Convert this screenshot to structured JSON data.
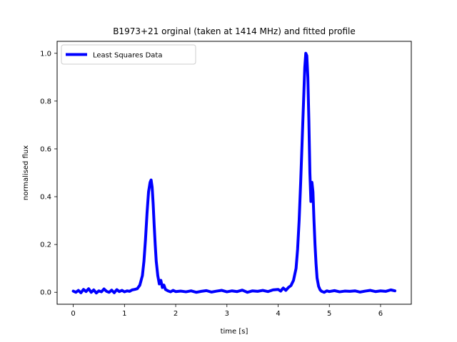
{
  "chart_data": {
    "type": "line",
    "title": "B1973+21 orginal (taken at 1414 MHz) and fitted profile",
    "xlabel": "time [s]",
    "ylabel": "normalised flux",
    "xlim": [
      -0.315,
      6.6
    ],
    "ylim": [
      -0.05,
      1.05
    ],
    "xticks": [
      0,
      1,
      2,
      3,
      4,
      5,
      6
    ],
    "xtick_labels": [
      "0",
      "1",
      "2",
      "3",
      "4",
      "5",
      "6"
    ],
    "yticks": [
      0.0,
      0.2,
      0.4,
      0.6,
      0.8,
      1.0
    ],
    "ytick_labels": [
      "0.0",
      "0.2",
      "0.4",
      "0.6",
      "0.8",
      "1.0"
    ],
    "grid": false,
    "legend": {
      "position": "upper-left"
    },
    "colors": {
      "series": "#0000ff",
      "axes": "#000000",
      "background": "#ffffff"
    },
    "series": [
      {
        "name": "Least Squares Data",
        "color": "#0000ff",
        "x": [
          0.0,
          0.05,
          0.1,
          0.15,
          0.2,
          0.25,
          0.3,
          0.35,
          0.4,
          0.45,
          0.5,
          0.55,
          0.6,
          0.65,
          0.7,
          0.75,
          0.8,
          0.85,
          0.9,
          0.95,
          1.0,
          1.05,
          1.1,
          1.15,
          1.2,
          1.25,
          1.3,
          1.35,
          1.38,
          1.41,
          1.44,
          1.47,
          1.5,
          1.52,
          1.54,
          1.56,
          1.58,
          1.6,
          1.62,
          1.65,
          1.68,
          1.71,
          1.74,
          1.77,
          1.8,
          1.85,
          1.9,
          1.95,
          2.0,
          2.1,
          2.2,
          2.3,
          2.4,
          2.5,
          2.6,
          2.7,
          2.8,
          2.9,
          3.0,
          3.1,
          3.2,
          3.3,
          3.4,
          3.5,
          3.6,
          3.7,
          3.8,
          3.9,
          4.0,
          4.05,
          4.1,
          4.15,
          4.2,
          4.25,
          4.3,
          4.35,
          4.38,
          4.41,
          4.44,
          4.47,
          4.5,
          4.52,
          4.54,
          4.56,
          4.58,
          4.6,
          4.62,
          4.64,
          4.66,
          4.68,
          4.7,
          4.72,
          4.74,
          4.76,
          4.79,
          4.82,
          4.85,
          4.9,
          4.95,
          5.0,
          5.1,
          5.2,
          5.3,
          5.4,
          5.5,
          5.6,
          5.7,
          5.8,
          5.9,
          6.0,
          6.1,
          6.2,
          6.28
        ],
        "y": [
          0.005,
          0.0,
          0.008,
          -0.002,
          0.012,
          0.003,
          0.015,
          0.0,
          0.01,
          -0.003,
          0.006,
          0.002,
          0.014,
          0.004,
          0.0,
          0.009,
          -0.002,
          0.011,
          0.003,
          0.008,
          0.002,
          0.006,
          0.004,
          0.01,
          0.012,
          0.015,
          0.03,
          0.07,
          0.13,
          0.22,
          0.33,
          0.42,
          0.46,
          0.47,
          0.44,
          0.37,
          0.28,
          0.2,
          0.13,
          0.07,
          0.035,
          0.05,
          0.02,
          0.03,
          0.012,
          0.006,
          0.002,
          0.008,
          0.003,
          0.005,
          0.002,
          0.006,
          0.0,
          0.004,
          0.007,
          0.001,
          0.005,
          0.008,
          0.002,
          0.006,
          0.003,
          0.009,
          0.0,
          0.006,
          0.004,
          0.008,
          0.003,
          0.01,
          0.012,
          0.005,
          0.018,
          0.008,
          0.02,
          0.028,
          0.05,
          0.1,
          0.18,
          0.3,
          0.46,
          0.64,
          0.82,
          0.94,
          1.0,
          0.99,
          0.9,
          0.72,
          0.5,
          0.38,
          0.46,
          0.42,
          0.3,
          0.2,
          0.12,
          0.06,
          0.025,
          0.01,
          0.004,
          0.0,
          0.006,
          0.003,
          0.007,
          0.002,
          0.005,
          0.004,
          0.006,
          0.001,
          0.005,
          0.008,
          0.003,
          0.006,
          0.004,
          0.01,
          0.006
        ]
      }
    ]
  }
}
